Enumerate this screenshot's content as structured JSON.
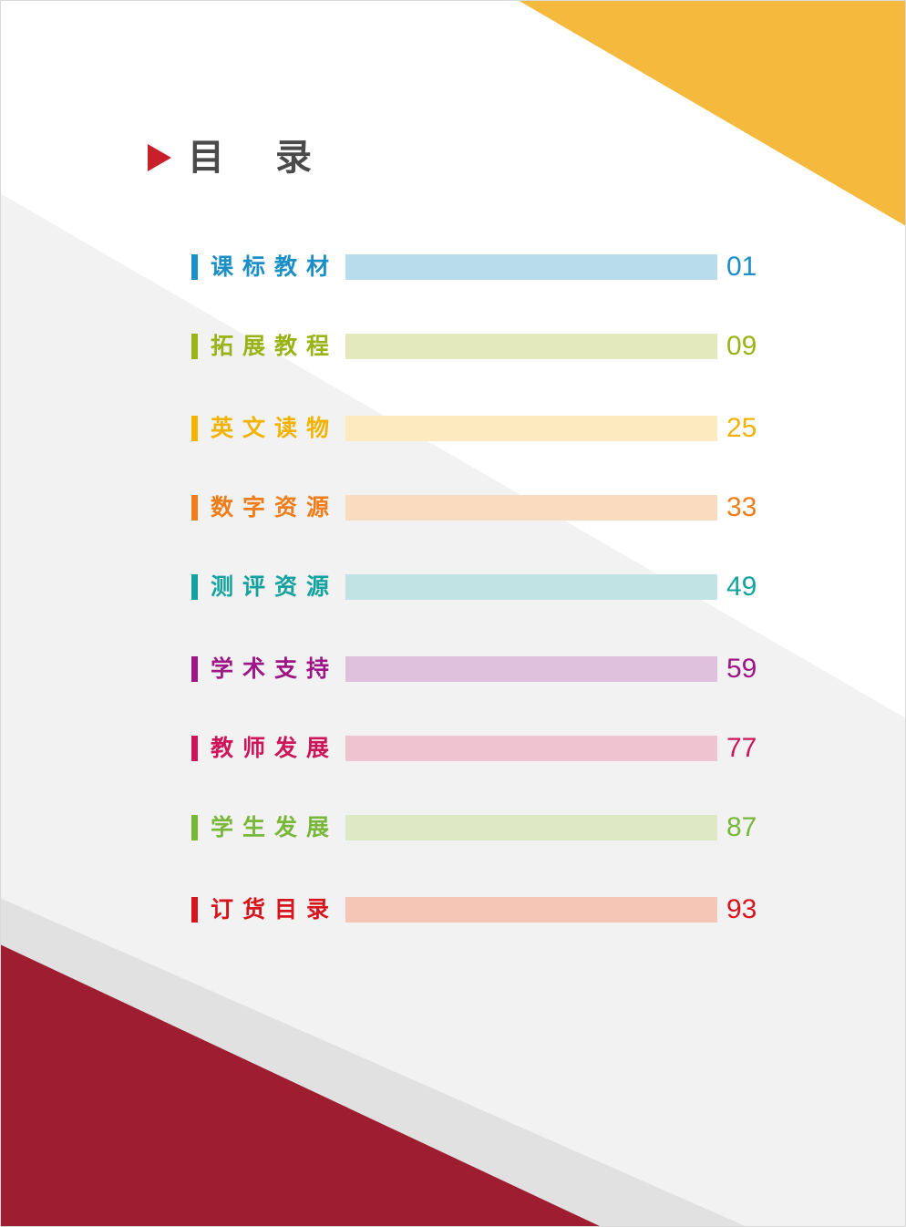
{
  "title": "目录",
  "colors": {
    "title_arrow": "#c8202a",
    "title_text": "#4a4a4a",
    "corner_yellow": "#f4b93d",
    "corner_red": "#9e1d30",
    "band_light": "#f2f2f2",
    "band_mid": "#e1e1e1"
  },
  "toc": [
    {
      "label": "课标教材",
      "page": "01",
      "color": "#1b8fc6",
      "bar": "#b8dcec"
    },
    {
      "label": "拓展教程",
      "page": "09",
      "color": "#9ab317",
      "bar": "#e3e8bd"
    },
    {
      "label": "英文读物",
      "page": "25",
      "color": "#f2b300",
      "bar": "#fdebbf"
    },
    {
      "label": "数字资源",
      "page": "33",
      "color": "#ee7d1a",
      "bar": "#f9dcbf"
    },
    {
      "label": "测评资源",
      "page": "49",
      "color": "#14a29f",
      "bar": "#c1e3e4"
    },
    {
      "label": "学术支持",
      "page": "59",
      "color": "#9d1586",
      "bar": "#e0c1dd"
    },
    {
      "label": "教师发展",
      "page": "77",
      "color": "#cc1659",
      "bar": "#f0c3d1"
    },
    {
      "label": "学生发展",
      "page": "87",
      "color": "#79b73a",
      "bar": "#dde9c4"
    },
    {
      "label": "订货目录",
      "page": "93",
      "color": "#d7141e",
      "bar": "#f5c5b6"
    }
  ]
}
